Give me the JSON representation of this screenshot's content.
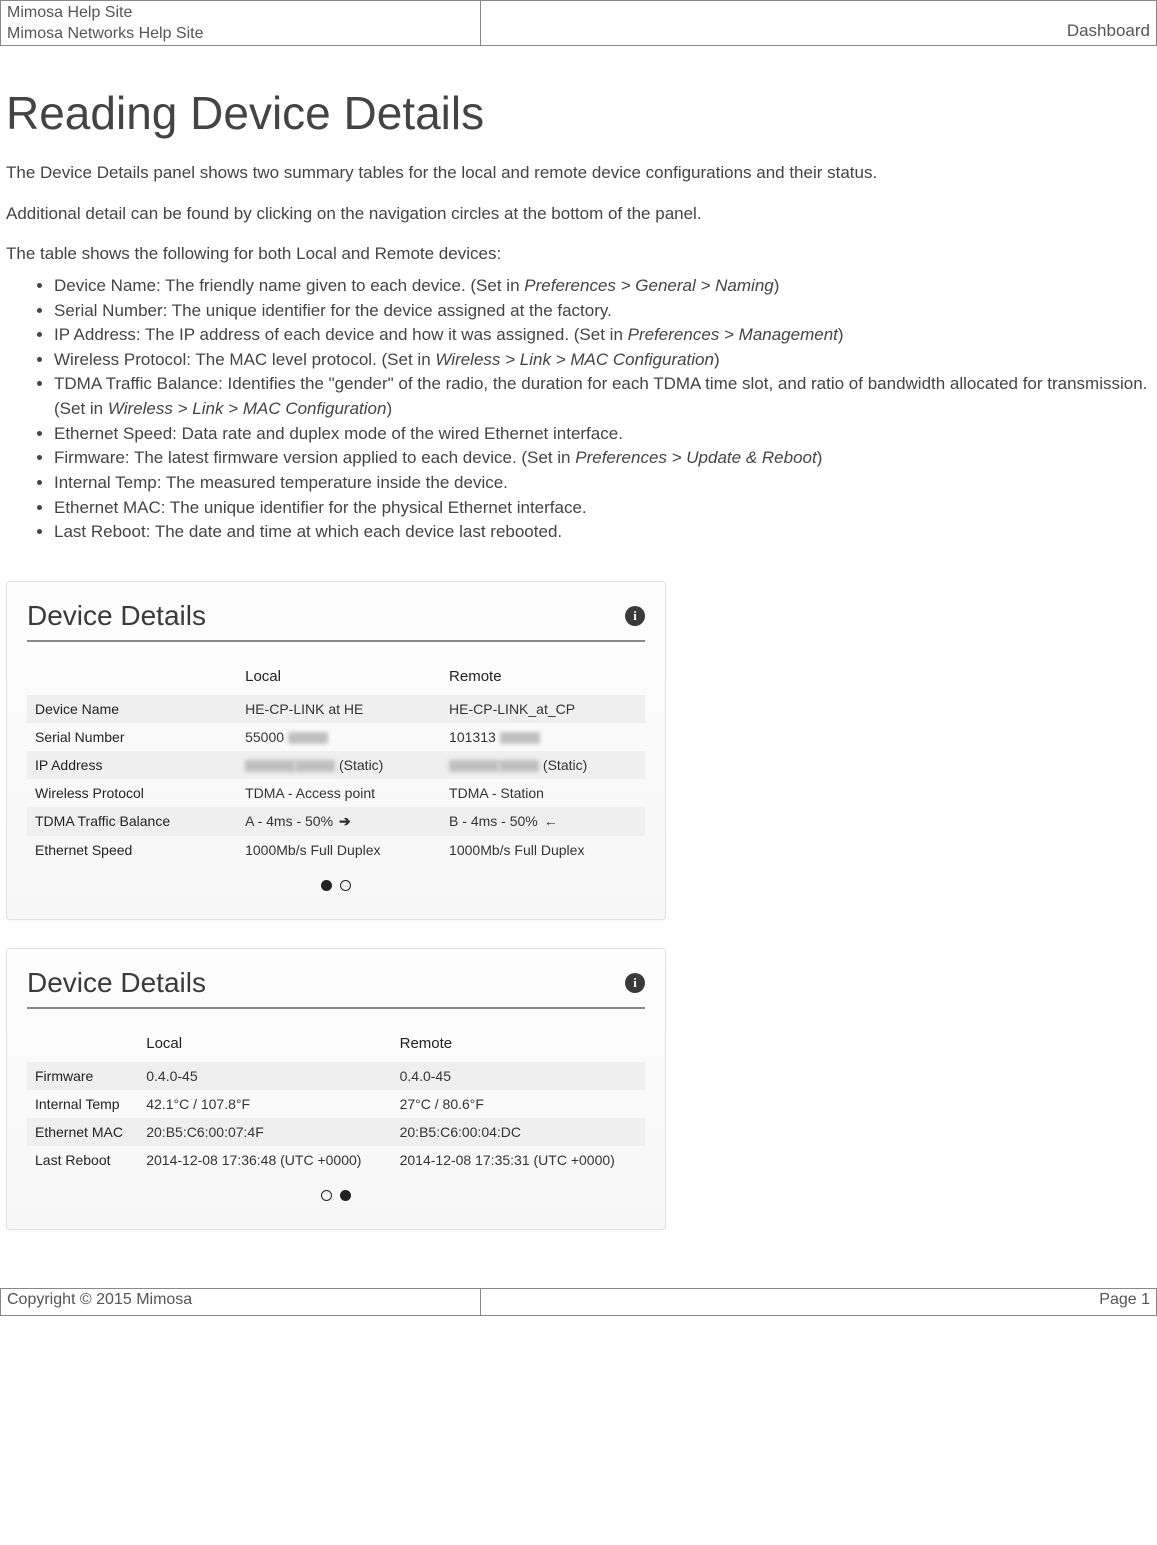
{
  "header": {
    "site_title": "Mimosa Help Site",
    "site_subtitle": "Mimosa Networks Help Site",
    "breadcrumb": "Dashboard"
  },
  "page": {
    "title": "Reading Device Details",
    "intro1": "The Device Details panel shows two summary tables for the local and remote device configurations and their status.",
    "intro2": "Additional detail can be found by clicking on the navigation circles at the bottom of the panel.",
    "list_intro": "The table shows the following for both Local and Remote devices:"
  },
  "fields": [
    {
      "name": "Device Name",
      "desc": "The friendly name given to each device. (Set in ",
      "path": "Preferences > General > Naming",
      "tail": ")"
    },
    {
      "name": "Serial Number",
      "desc": "The unique identifier for the device assigned at the factory.",
      "path": "",
      "tail": ""
    },
    {
      "name": "IP Address",
      "desc": "The IP address of each device and how it was assigned. (Set in ",
      "path": "Preferences > Management",
      "tail": ")"
    },
    {
      "name": "Wireless Protocol",
      "desc": "The MAC level protocol. (Set in ",
      "path": "Wireless > Link > MAC Configuration",
      "tail": ")"
    },
    {
      "name": "TDMA Traffic Balance",
      "desc": "Identifies the \"gender\" of the radio, the duration for each TDMA time slot, and ratio of bandwidth allocated for transmission. (Set in ",
      "path": "Wireless > Link > MAC Configuration",
      "tail": ")"
    },
    {
      "name": "Ethernet Speed",
      "desc": "Data rate and duplex mode of the wired Ethernet interface.",
      "path": "",
      "tail": ""
    },
    {
      "name": "Firmware",
      "desc": "The latest firmware version applied to each device. (Set in ",
      "path": "Preferences > Update & Reboot",
      "tail": ")"
    },
    {
      "name": "Internal Temp",
      "desc": "The measured temperature inside the device.",
      "path": "",
      "tail": ""
    },
    {
      "name": "Ethernet MAC",
      "desc": "The unique identifier for the physical Ethernet interface.",
      "path": "",
      "tail": ""
    },
    {
      "name": "Last Reboot",
      "desc": "The date and time at which each device last rebooted.",
      "path": "",
      "tail": ""
    }
  ],
  "panel1": {
    "title": "Device Details",
    "col_label_width": "34%",
    "col_local": "Local",
    "col_remote": "Remote",
    "rows": [
      {
        "label": "Device Name",
        "local": "HE-CP-LINK at HE",
        "remote": "HE-CP-LINK_at_CP"
      },
      {
        "label": "Serial Number",
        "local": "55000",
        "local_blur": true,
        "remote": "101313",
        "remote_blur": true
      },
      {
        "label": "IP Address",
        "local_blur_full": true,
        "local_suffix": " (Static)",
        "remote_blur_full": true,
        "remote_suffix": " (Static)"
      },
      {
        "label": "Wireless Protocol",
        "local": "TDMA - Access point",
        "remote": "TDMA - Station"
      },
      {
        "label": "TDMA Traffic Balance",
        "local": "A - 4ms - 50%",
        "local_arrow": "➔",
        "remote": "B - 4ms - 50%",
        "remote_arrow": "←"
      },
      {
        "label": "Ethernet Speed",
        "local": "1000Mb/s Full Duplex",
        "remote": "1000Mb/s Full Duplex"
      }
    ],
    "active_page": 0
  },
  "panel2": {
    "title": "Device Details",
    "col_label_width": "18%",
    "col_local": "Local",
    "col_remote": "Remote",
    "rows": [
      {
        "label": "Firmware",
        "local": "0.4.0-45",
        "remote": "0.4.0-45"
      },
      {
        "label": "Internal Temp",
        "local": "42.1°C / 107.8°F",
        "remote": "27°C / 80.6°F"
      },
      {
        "label": "Ethernet MAC",
        "local": "20:B5:C6:00:07:4F",
        "remote": "20:B5:C6:00:04:DC"
      },
      {
        "label": "Last Reboot",
        "local": "2014-12-08 17:36:48 (UTC +0000)",
        "remote": "2014-12-08 17:35:31 (UTC +0000)"
      }
    ],
    "active_page": 1
  },
  "footer": {
    "copyright": "Copyright © 2015 Mimosa",
    "page": "Page 1"
  },
  "colors": {
    "border": "#888888",
    "text": "#444444",
    "row_stripe": "#efefef",
    "panel_border": "#e0e0e0"
  }
}
